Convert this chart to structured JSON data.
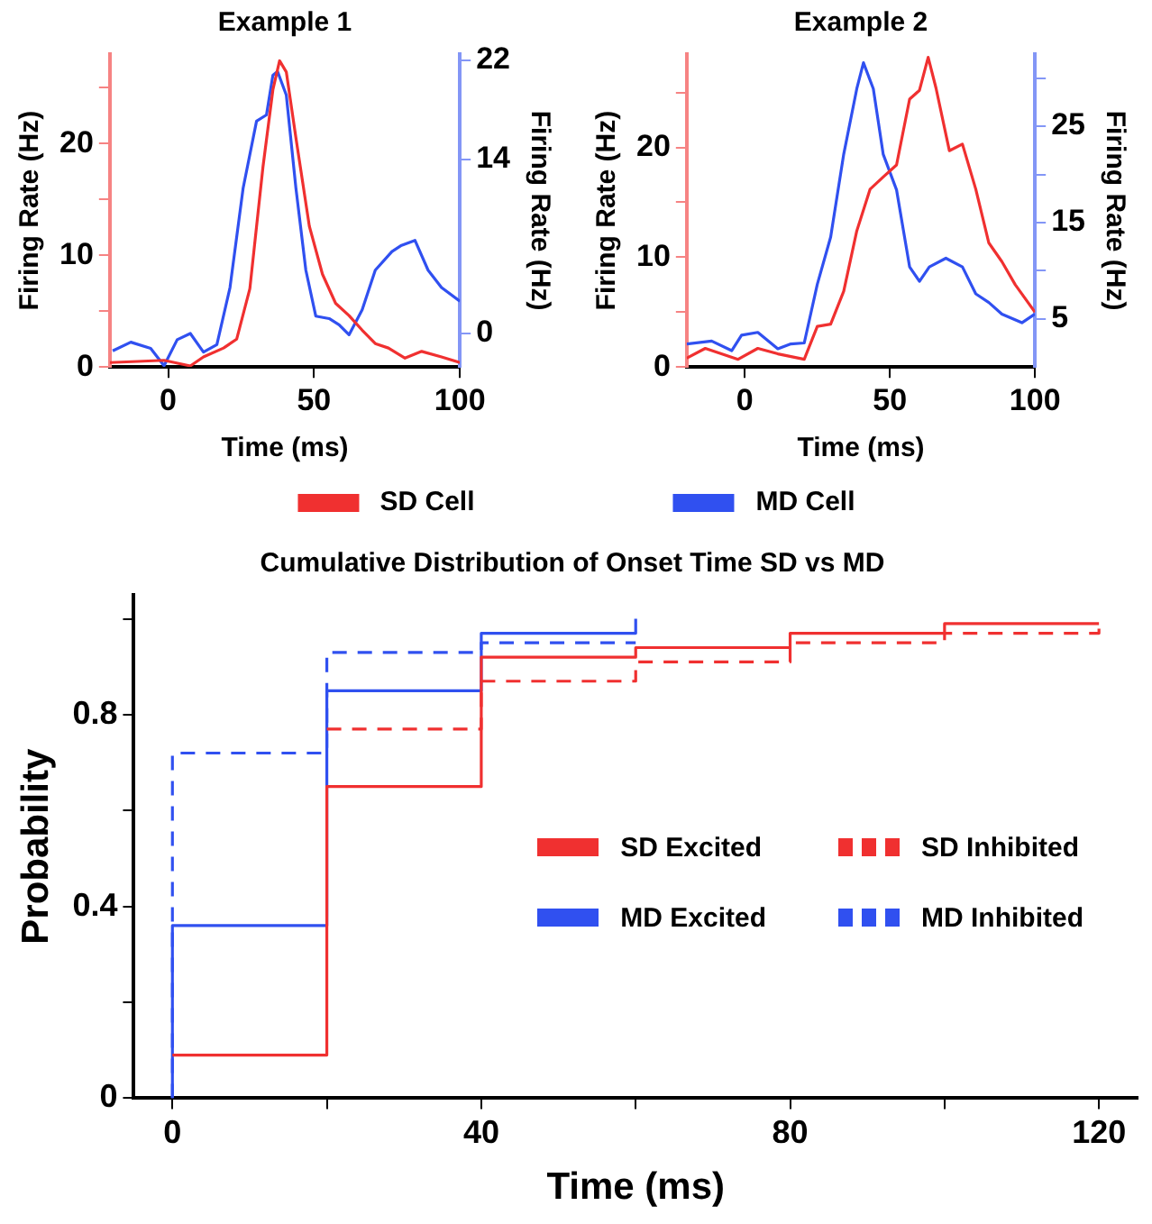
{
  "chart_data": [
    {
      "type": "line",
      "title": "Example 1",
      "xlabel": "Time (ms)",
      "ylabel": "Firing Rate (Hz)",
      "y2label": "Firing Rate (Hz)",
      "xlim": [
        -20,
        100
      ],
      "xticks": [
        0,
        50,
        100
      ],
      "ylim": [
        0,
        28
      ],
      "yticks": [
        0,
        {
          "value": 5,
          "label": null
        },
        10,
        {
          "value": 15,
          "label": null
        },
        20,
        {
          "value": 25,
          "label": null
        }
      ],
      "y2lim": [
        -2.7,
        22.5
      ],
      "y2ticks": [
        0,
        14,
        22
      ],
      "grid": false,
      "legend": "bottom",
      "marker": "none",
      "line_style": "solid",
      "series": [
        {
          "name": "SD Cell",
          "color": "#f03030",
          "x": [
            -20,
            -10.5,
            -1.4,
            7.6,
            12.1,
            19,
            23.5,
            28,
            32.5,
            35.9,
            38.2,
            40.5,
            43.8,
            48.4,
            52.9,
            57.4,
            62,
            66.5,
            71,
            75.5,
            81.2,
            86.9,
            93.7,
            100
          ],
          "values": [
            0.4,
            0.5,
            0.6,
            0.1,
            0.9,
            1.7,
            2.5,
            7,
            17.9,
            24.8,
            27.4,
            26.4,
            20.5,
            12.6,
            8.3,
            5.7,
            4.6,
            3.3,
            2.1,
            1.7,
            0.8,
            1.4,
            0.9,
            0.4
          ]
        },
        {
          "name": "MD Cell",
          "color": "#3050f0",
          "axis": "y2",
          "x": [
            -19,
            -12.8,
            -6,
            -1.4,
            3.1,
            7.6,
            12.1,
            16.7,
            21.2,
            25.7,
            30.3,
            33.7,
            35.9,
            37.5,
            40.5,
            43.8,
            47.2,
            50.6,
            55.2,
            58.6,
            62,
            66.5,
            71,
            76.7,
            80,
            84.6,
            89.1,
            93.7,
            100
          ],
          "values": [
            -1.4,
            -0.7,
            -1.2,
            -2.6,
            -0.5,
            0,
            -1.5,
            -0.9,
            3.7,
            11.7,
            17.1,
            17.6,
            20.8,
            21.1,
            19.2,
            11.7,
            5.1,
            1.4,
            1.2,
            0.7,
            -0.1,
            1.9,
            5.1,
            6.6,
            7.1,
            7.5,
            5.1,
            3.7,
            2.6
          ]
        }
      ]
    },
    {
      "type": "line",
      "title": "Example 2",
      "xlabel": "Time (ms)",
      "ylabel": "Firing Rate (Hz)",
      "y2label": "Firing Rate (Hz)",
      "xlim": [
        -20,
        100
      ],
      "xticks": [
        0,
        50,
        100
      ],
      "ylim": [
        0,
        28.5
      ],
      "yticks": [
        0,
        {
          "value": 5,
          "label": null
        },
        10,
        {
          "value": 15,
          "label": null
        },
        20,
        {
          "value": 25,
          "label": null
        }
      ],
      "y2lim": [
        0,
        32.5
      ],
      "y2ticks": [
        5,
        {
          "value": 10,
          "label": null
        },
        15,
        {
          "value": 20,
          "label": null
        },
        25,
        {
          "value": 30,
          "label": null
        }
      ],
      "grid": false,
      "marker": "none",
      "line_style": "solid",
      "series": [
        {
          "color": "#f03030",
          "x": [
            -20,
            -13.6,
            -2.3,
            4.5,
            11.4,
            20.5,
            25,
            29.6,
            34.1,
            38.6,
            43.2,
            47.7,
            52.3,
            56.8,
            60.2,
            63.2,
            65.9,
            70.5,
            75,
            79.6,
            84.1,
            88.6,
            93.2,
            100
          ],
          "values": [
            0.8,
            1.7,
            0.7,
            1.7,
            1.2,
            0.7,
            3.7,
            3.9,
            6.9,
            12.4,
            16.2,
            17.3,
            18.4,
            24.4,
            25.2,
            28.2,
            25.4,
            19.7,
            20.3,
            16.2,
            11.3,
            9.6,
            7.5,
            5
          ]
        },
        {
          "color": "#3050f0",
          "axis": "y2",
          "x": [
            -20,
            -11.4,
            -4.5,
            -1.1,
            4.5,
            11.4,
            15.9,
            20.5,
            25,
            29.6,
            34.1,
            38.6,
            40.9,
            44.3,
            47.7,
            52.3,
            56.8,
            60.2,
            63.6,
            69.3,
            75,
            79.6,
            84.1,
            88.6,
            95.5,
            100
          ],
          "values": [
            2.4,
            2.7,
            1.7,
            3.3,
            3.6,
            1.9,
            2.4,
            2.5,
            8.6,
            13.5,
            22.1,
            28.9,
            31.6,
            28.9,
            22.1,
            18.4,
            10.4,
            8.9,
            10.4,
            11.3,
            10.4,
            7.6,
            6.7,
            5.5,
            4.6,
            5.5
          ]
        }
      ]
    },
    {
      "type": "step",
      "title": "Cumulative Distribution of Onset Time SD vs MD",
      "xlabel": "Time (ms)",
      "ylabel": "Probability",
      "xlim": [
        -5,
        125
      ],
      "xticks": [
        0,
        {
          "value": 20,
          "label": null
        },
        40,
        {
          "value": 60,
          "label": null
        },
        80,
        {
          "value": 100,
          "label": null
        },
        120
      ],
      "ylim": [
        0,
        1.05
      ],
      "yticks": [
        0,
        {
          "value": 0.2,
          "label": null
        },
        0.4,
        {
          "value": 0.6,
          "label": null
        },
        0.8,
        {
          "value": 1.0,
          "label": null
        }
      ],
      "grid": false,
      "legend": "center right",
      "series": [
        {
          "name": "SD Excited",
          "color": "#f03030",
          "line_style": "solid",
          "x": [
            0,
            20,
            40,
            60,
            80,
            100,
            120
          ],
          "values": [
            0.09,
            0.65,
            0.92,
            0.94,
            0.97,
            0.99,
            0.99
          ]
        },
        {
          "name": "SD Inhibited",
          "color": "#f03030",
          "line_style": "dashed",
          "x": [
            20,
            40,
            60,
            80,
            100,
            120
          ],
          "values": [
            0.77,
            0.87,
            0.91,
            0.95,
            0.97,
            1.0
          ]
        },
        {
          "name": "MD Excited",
          "color": "#3050f0",
          "line_style": "solid",
          "x": [
            0,
            0,
            20,
            40,
            60
          ],
          "values": [
            0,
            0.36,
            0.85,
            0.97,
            1.0
          ]
        },
        {
          "name": "MD Inhibited",
          "color": "#3050f0",
          "line_style": "dashed",
          "x": [
            0,
            0,
            20,
            40,
            60
          ],
          "values": [
            0,
            0.72,
            0.93,
            0.95,
            0.95
          ]
        }
      ]
    }
  ]
}
